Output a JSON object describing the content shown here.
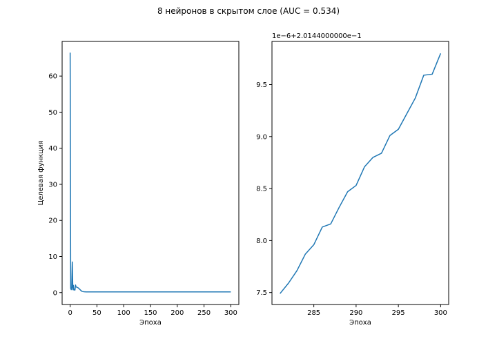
{
  "figure": {
    "suptitle": "8 нейронов в скрытом слое (AUC = 0.534)",
    "line_color": "#1f77b4"
  },
  "chart_data": [
    {
      "type": "line",
      "title": "",
      "xlabel": "Эпоха",
      "ylabel": "Целевая функция",
      "xlim": [
        -15,
        315
      ],
      "ylim": [
        -3.3,
        69.6
      ],
      "xticks": [
        0,
        50,
        100,
        150,
        200,
        250,
        300
      ],
      "xtick_labels": [
        "0",
        "50",
        "100",
        "150",
        "200",
        "250",
        "300"
      ],
      "yticks": [
        0,
        10,
        20,
        30,
        40,
        50,
        60
      ],
      "ytick_labels": [
        "0",
        "10",
        "20",
        "30",
        "40",
        "50",
        "60"
      ],
      "grid": false,
      "series": [
        {
          "x": [
            0,
            1,
            2,
            3,
            4,
            5,
            6,
            7,
            8,
            9,
            10,
            11,
            12,
            14,
            16,
            18,
            20,
            22,
            25,
            30,
            40,
            60,
            100,
            150,
            200,
            250,
            300
          ],
          "y": [
            66.5,
            1.2,
            0.8,
            1.5,
            8.5,
            0.8,
            2.0,
            0.7,
            0.9,
            0.7,
            2.1,
            1.6,
            1.5,
            1.4,
            1.2,
            0.9,
            0.6,
            0.35,
            0.25,
            0.2,
            0.2,
            0.2,
            0.2,
            0.2,
            0.2,
            0.2,
            0.2
          ]
        }
      ]
    },
    {
      "type": "line",
      "title": "",
      "xlabel": "Эпоха",
      "ylabel": "",
      "offset_label": "1e−6+2.0144000000e−1",
      "xlim": [
        280.05,
        300.95
      ],
      "ylim": [
        7.385,
        9.915
      ],
      "xticks": [
        285,
        290,
        295,
        300
      ],
      "xtick_labels": [
        "285",
        "290",
        "295",
        "300"
      ],
      "yticks": [
        7.5,
        8.0,
        8.5,
        9.0,
        9.5
      ],
      "ytick_labels": [
        "7.5",
        "8.0",
        "8.5",
        "9.0",
        "9.5"
      ],
      "grid": false,
      "series": [
        {
          "x": [
            281,
            282,
            283,
            284,
            285,
            286,
            287,
            288,
            289,
            290,
            291,
            292,
            293,
            294,
            295,
            296,
            297,
            298,
            299,
            300
          ],
          "y": [
            7.49,
            7.59,
            7.71,
            7.87,
            7.96,
            8.13,
            8.16,
            8.32,
            8.47,
            8.53,
            8.71,
            8.8,
            8.84,
            9.01,
            9.07,
            9.22,
            9.37,
            9.59,
            9.6,
            9.8
          ]
        }
      ]
    }
  ]
}
